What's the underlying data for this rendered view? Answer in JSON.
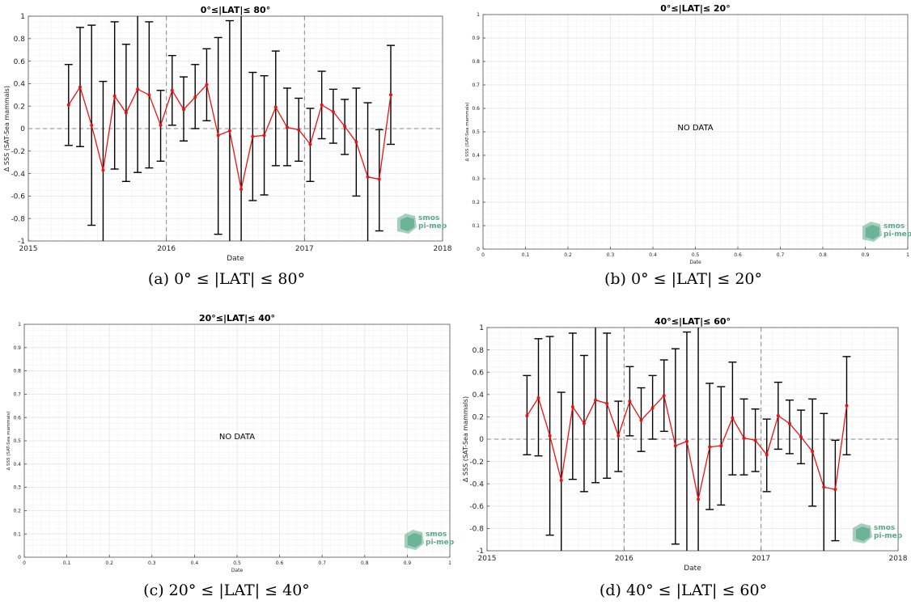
{
  "logo": {
    "line1": "smos",
    "line2": "pi-mep",
    "color": "#5aa98a"
  },
  "colors": {
    "series": "#ee1111",
    "errorbar": "#000000",
    "grid": "#e6e6e6",
    "dashed": "#888888"
  },
  "panels": [
    {
      "id": "a",
      "caption": "(a) 0° ≤ |LAT| ≤ 80°",
      "chart_data": {
        "type": "line",
        "title": "0°≤|LAT|≤ 80°",
        "xlabel": "Date",
        "ylabel": "Δ SSS (SAT-Sea mammals)",
        "xticks": [
          "2015",
          "2016",
          "2017",
          "2018"
        ],
        "xlim": [
          "2015-01-01",
          "2018-01-01"
        ],
        "ylim": [
          -1,
          1
        ],
        "yticks": [
          "-1",
          "-0.8",
          "-0.6",
          "-0.4",
          "-0.2",
          "0",
          "0.2",
          "0.4",
          "0.6",
          "0.8",
          "1"
        ],
        "grid": true,
        "reference_line_y": 0,
        "x": [
          "2015-04",
          "2015-05",
          "2015-06",
          "2015-07",
          "2015-08",
          "2015-09",
          "2015-10",
          "2015-11",
          "2015-12",
          "2016-01",
          "2016-02",
          "2016-03",
          "2016-04",
          "2016-05",
          "2016-06",
          "2016-07",
          "2016-08",
          "2016-09",
          "2016-10",
          "2016-11",
          "2016-12",
          "2017-01",
          "2017-02",
          "2017-03",
          "2017-04",
          "2017-05",
          "2017-06",
          "2017-07",
          "2017-08"
        ],
        "y": [
          0.21,
          0.37,
          0.03,
          -0.37,
          0.29,
          0.14,
          0.35,
          0.3,
          0.03,
          0.34,
          0.17,
          0.28,
          0.39,
          -0.06,
          -0.02,
          -0.54,
          -0.07,
          -0.06,
          0.19,
          0.01,
          -0.01,
          -0.14,
          0.21,
          0.15,
          0.02,
          -0.12,
          -0.43,
          -0.45,
          0.3
        ],
        "error_low": [
          -0.15,
          -0.16,
          -0.86,
          -1.0,
          -0.36,
          -0.47,
          -0.39,
          -0.35,
          -0.29,
          0.03,
          -0.11,
          0.0,
          0.07,
          -0.94,
          -1.0,
          -1.0,
          -0.64,
          -0.59,
          -0.33,
          -0.33,
          -0.29,
          -0.47,
          -0.09,
          -0.13,
          -0.23,
          -0.6,
          -1.0,
          -0.91,
          -0.14
        ],
        "error_high": [
          0.57,
          0.9,
          0.92,
          0.42,
          0.95,
          0.75,
          1.0,
          0.95,
          0.34,
          0.65,
          0.46,
          0.57,
          0.71,
          0.81,
          0.96,
          1.0,
          0.5,
          0.47,
          0.69,
          0.36,
          0.27,
          0.18,
          0.51,
          0.35,
          0.26,
          0.36,
          0.23,
          -0.01,
          0.74
        ],
        "nodata_text": ""
      }
    },
    {
      "id": "b",
      "caption": "(b) 0° ≤ |LAT| ≤ 20°",
      "chart_data": {
        "type": "line",
        "title": "0°≤|LAT|≤ 20°",
        "xlabel": "Date",
        "ylabel": "Δ SSS (SAT-Sea mammals)",
        "xticks": [
          "0",
          "0.1",
          "0.2",
          "0.3",
          "0.4",
          "0.5",
          "0.6",
          "0.7",
          "0.8",
          "0.9",
          "1"
        ],
        "yticks": [
          "0",
          "0.1",
          "0.2",
          "0.3",
          "0.4",
          "0.5",
          "0.6",
          "0.7",
          "0.8",
          "0.9",
          "1"
        ],
        "xlim": [
          0,
          1
        ],
        "ylim": [
          0,
          1
        ],
        "grid": true,
        "x": [],
        "y": [],
        "nodata_text": "NO DATA"
      }
    },
    {
      "id": "c",
      "caption": "(c) 20° ≤ |LAT| ≤ 40°",
      "chart_data": {
        "type": "line",
        "title": "20°≤|LAT|≤ 40°",
        "xlabel": "Date",
        "ylabel": "Δ SSS (SAT-Sea mammals)",
        "xticks": [
          "0",
          "0.1",
          "0.2",
          "0.3",
          "0.4",
          "0.5",
          "0.6",
          "0.7",
          "0.8",
          "0.9",
          "1"
        ],
        "yticks": [
          "0",
          "0.1",
          "0.2",
          "0.3",
          "0.4",
          "0.5",
          "0.6",
          "0.7",
          "0.8",
          "0.9",
          "1"
        ],
        "xlim": [
          0,
          1
        ],
        "ylim": [
          0,
          1
        ],
        "grid": true,
        "x": [],
        "y": [],
        "nodata_text": "NO DATA"
      }
    },
    {
      "id": "d",
      "caption": "(d) 40° ≤ |LAT| ≤ 60°",
      "chart_data": {
        "type": "line",
        "title": "40°≤|LAT|≤ 60°",
        "xlabel": "Date",
        "ylabel": "Δ SSS (SAT-Sea mammals)",
        "xticks": [
          "2015",
          "2016",
          "2017",
          "2018"
        ],
        "xlim": [
          "2015-01-01",
          "2018-01-01"
        ],
        "ylim": [
          -1,
          1
        ],
        "yticks": [
          "-1",
          "-0.8",
          "-0.6",
          "-0.4",
          "-0.2",
          "0",
          "0.2",
          "0.4",
          "0.6",
          "0.8",
          "1"
        ],
        "grid": true,
        "reference_line_y": 0,
        "x": [
          "2015-04",
          "2015-05",
          "2015-06",
          "2015-07",
          "2015-08",
          "2015-09",
          "2015-10",
          "2015-11",
          "2015-12",
          "2016-01",
          "2016-02",
          "2016-03",
          "2016-04",
          "2016-05",
          "2016-06",
          "2016-07",
          "2016-08",
          "2016-09",
          "2016-10",
          "2016-11",
          "2016-12",
          "2017-01",
          "2017-02",
          "2017-03",
          "2017-04",
          "2017-05",
          "2017-06",
          "2017-07",
          "2017-08"
        ],
        "y": [
          0.21,
          0.37,
          0.03,
          -0.37,
          0.29,
          0.14,
          0.35,
          0.32,
          0.03,
          0.34,
          0.17,
          0.28,
          0.39,
          -0.06,
          -0.02,
          -0.54,
          -0.07,
          -0.06,
          0.19,
          0.01,
          -0.01,
          -0.14,
          0.21,
          0.14,
          0.02,
          -0.11,
          -0.43,
          -0.45,
          0.3
        ],
        "error_low": [
          -0.14,
          -0.15,
          -0.86,
          -1.0,
          -0.36,
          -0.47,
          -0.39,
          -0.35,
          -0.29,
          0.03,
          -0.11,
          0.0,
          0.07,
          -0.94,
          -1.0,
          -1.0,
          -0.63,
          -0.59,
          -0.32,
          -0.32,
          -0.29,
          -0.47,
          -0.09,
          -0.13,
          -0.22,
          -0.6,
          -1.0,
          -0.91,
          -0.14
        ],
        "error_high": [
          0.57,
          0.9,
          0.92,
          0.42,
          0.95,
          0.75,
          1.0,
          0.95,
          0.34,
          0.65,
          0.46,
          0.57,
          0.71,
          0.81,
          0.96,
          1.0,
          0.5,
          0.47,
          0.69,
          0.36,
          0.27,
          0.18,
          0.51,
          0.35,
          0.26,
          0.36,
          0.23,
          -0.01,
          0.74
        ],
        "nodata_text": ""
      }
    }
  ]
}
